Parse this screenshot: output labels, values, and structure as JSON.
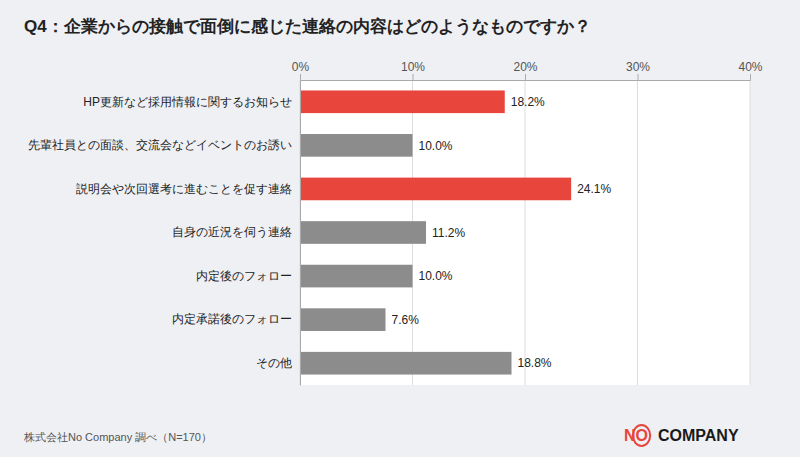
{
  "chart_data": {
    "type": "bar",
    "orientation": "horizontal",
    "title": "Q4：企業からの接触で面倒に感じた連絡の内容はどのようなものですか？",
    "categories": [
      "HP更新など採用情報に関するお知らせ",
      "先輩社員との面談、交流会などイベントのお誘い",
      "説明会や次回選考に進むことを促す連絡",
      "自身の近況を伺う連絡",
      "内定後のフォロー",
      "内定承諾後のフォロー",
      "その他"
    ],
    "values": [
      18.2,
      10.0,
      24.1,
      11.2,
      10.0,
      7.6,
      18.8
    ],
    "value_labels": [
      "18.2%",
      "10.0%",
      "24.1%",
      "11.2%",
      "10.0%",
      "7.6%",
      "18.8%"
    ],
    "colors": [
      "#e8453c",
      "#8c8c8c",
      "#e8453c",
      "#8c8c8c",
      "#8c8c8c",
      "#8c8c8c",
      "#8c8c8c"
    ],
    "xlim": [
      0,
      40
    ],
    "xticks": [
      {
        "value": 0,
        "label": "0%"
      },
      {
        "value": 10,
        "label": "10%"
      },
      {
        "value": 20,
        "label": "20%"
      },
      {
        "value": 30,
        "label": "30%"
      },
      {
        "value": 40,
        "label": "40%"
      }
    ],
    "grid": true,
    "data_labels": true,
    "annotations": [
      "株式会社No Company 調べ（N=170）",
      "NO",
      "COMPANY"
    ]
  }
}
